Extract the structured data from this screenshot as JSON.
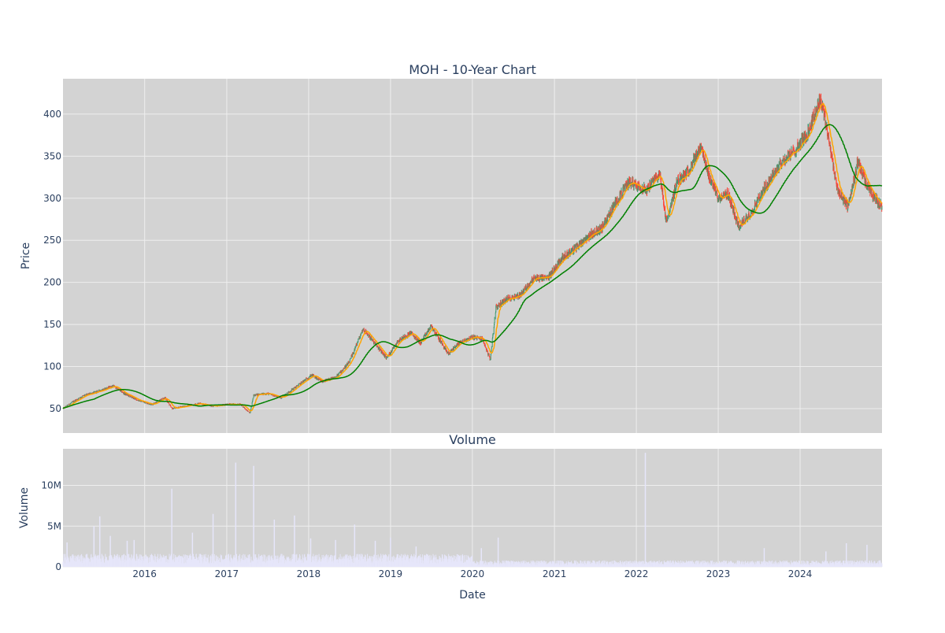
{
  "chart_data": [
    {
      "type": "candlestick",
      "title": "MOH - 10-Year Chart",
      "ylabel": "Price",
      "ylim": [
        21,
        442
      ],
      "y_ticks": [
        50,
        100,
        150,
        200,
        250,
        300,
        350,
        400
      ],
      "x_range": [
        "2015-01-02",
        "2024-12-31"
      ],
      "x_tick_labels": [
        "2016",
        "2017",
        "2018",
        "2019",
        "2020",
        "2021",
        "2022",
        "2023",
        "2024"
      ],
      "grid": true,
      "background": "#d3d3d3",
      "colors": {
        "up": "#3d9970",
        "down": "#ff4136",
        "ma_short": "orange",
        "ma_long": "green"
      },
      "anchors": {
        "dates": [
          "2015-01-02",
          "2015-02-15",
          "2015-04-01",
          "2015-06-01",
          "2015-08-15",
          "2015-10-01",
          "2015-12-01",
          "2016-02-01",
          "2016-04-01",
          "2016-05-01",
          "2016-07-01",
          "2016-09-01",
          "2016-11-01",
          "2017-01-01",
          "2017-03-01",
          "2017-04-15",
          "2017-05-01",
          "2017-07-01",
          "2017-09-01",
          "2017-11-01",
          "2018-01-15",
          "2018-03-01",
          "2018-05-01",
          "2018-07-01",
          "2018-09-01",
          "2018-10-15",
          "2018-12-15",
          "2019-02-01",
          "2019-04-01",
          "2019-05-15",
          "2019-07-01",
          "2019-09-15",
          "2019-11-01",
          "2020-01-01",
          "2020-02-15",
          "2020-03-20",
          "2020-04-15",
          "2020-06-01",
          "2020-08-01",
          "2020-10-01",
          "2020-12-01",
          "2021-02-01",
          "2021-04-01",
          "2021-06-01",
          "2021-08-01",
          "2021-10-01",
          "2021-12-01",
          "2022-02-15",
          "2022-04-15",
          "2022-05-15",
          "2022-07-01",
          "2022-08-15",
          "2022-10-15",
          "2022-11-15",
          "2023-01-01",
          "2023-02-15",
          "2023-04-01",
          "2023-06-01",
          "2023-08-01",
          "2023-10-01",
          "2023-12-01",
          "2024-02-01",
          "2024-04-01",
          "2024-05-15",
          "2024-06-15",
          "2024-08-01",
          "2024-09-15",
          "2024-10-15",
          "2024-11-15",
          "2024-12-31"
        ],
        "close": [
          50,
          58,
          65,
          70,
          77,
          68,
          60,
          55,
          63,
          50,
          53,
          56,
          53,
          55,
          55,
          45,
          66,
          68,
          63,
          75,
          90,
          82,
          87,
          105,
          145,
          130,
          110,
          130,
          140,
          128,
          148,
          115,
          128,
          135,
          133,
          108,
          170,
          180,
          185,
          205,
          205,
          228,
          240,
          255,
          265,
          295,
          320,
          310,
          330,
          270,
          320,
          330,
          360,
          330,
          300,
          305,
          265,
          285,
          315,
          340,
          355,
          375,
          420,
          360,
          310,
          290,
          345,
          320,
          305,
          290
        ]
      },
      "volume_axis_title": "Volume",
      "volume_ylabel": "Volume",
      "volume_ylim": [
        0,
        14500000
      ],
      "volume_ticks": [
        0,
        5000000,
        10000000
      ],
      "volume_tick_labels": [
        "0",
        "5M",
        "10M"
      ],
      "xlabel": "Date",
      "volume_color": "#e6e6fa",
      "volume_spikes": [
        {
          "date": "2015-01-20",
          "value": 3000000
        },
        {
          "date": "2015-05-20",
          "value": 5000000
        },
        {
          "date": "2015-06-15",
          "value": 6200000
        },
        {
          "date": "2015-08-01",
          "value": 3800000
        },
        {
          "date": "2015-10-15",
          "value": 3200000
        },
        {
          "date": "2015-11-15",
          "value": 3300000
        },
        {
          "date": "2016-05-01",
          "value": 9600000
        },
        {
          "date": "2016-08-01",
          "value": 4200000
        },
        {
          "date": "2016-11-01",
          "value": 6500000
        },
        {
          "date": "2017-02-10",
          "value": 12800000
        },
        {
          "date": "2017-05-01",
          "value": 12400000
        },
        {
          "date": "2017-08-01",
          "value": 5800000
        },
        {
          "date": "2017-10-30",
          "value": 6300000
        },
        {
          "date": "2018-01-10",
          "value": 3500000
        },
        {
          "date": "2018-05-01",
          "value": 3300000
        },
        {
          "date": "2018-07-25",
          "value": 5200000
        },
        {
          "date": "2018-10-25",
          "value": 3200000
        },
        {
          "date": "2019-01-01",
          "value": 3600000
        },
        {
          "date": "2019-04-25",
          "value": 2500000
        },
        {
          "date": "2020-02-10",
          "value": 2300000
        },
        {
          "date": "2020-04-25",
          "value": 3600000
        },
        {
          "date": "2022-02-10",
          "value": 14000000
        },
        {
          "date": "2023-07-25",
          "value": 2300000
        },
        {
          "date": "2024-04-25",
          "value": 1900000
        },
        {
          "date": "2024-07-25",
          "value": 2900000
        },
        {
          "date": "2024-10-25",
          "value": 2700000
        }
      ]
    }
  ]
}
